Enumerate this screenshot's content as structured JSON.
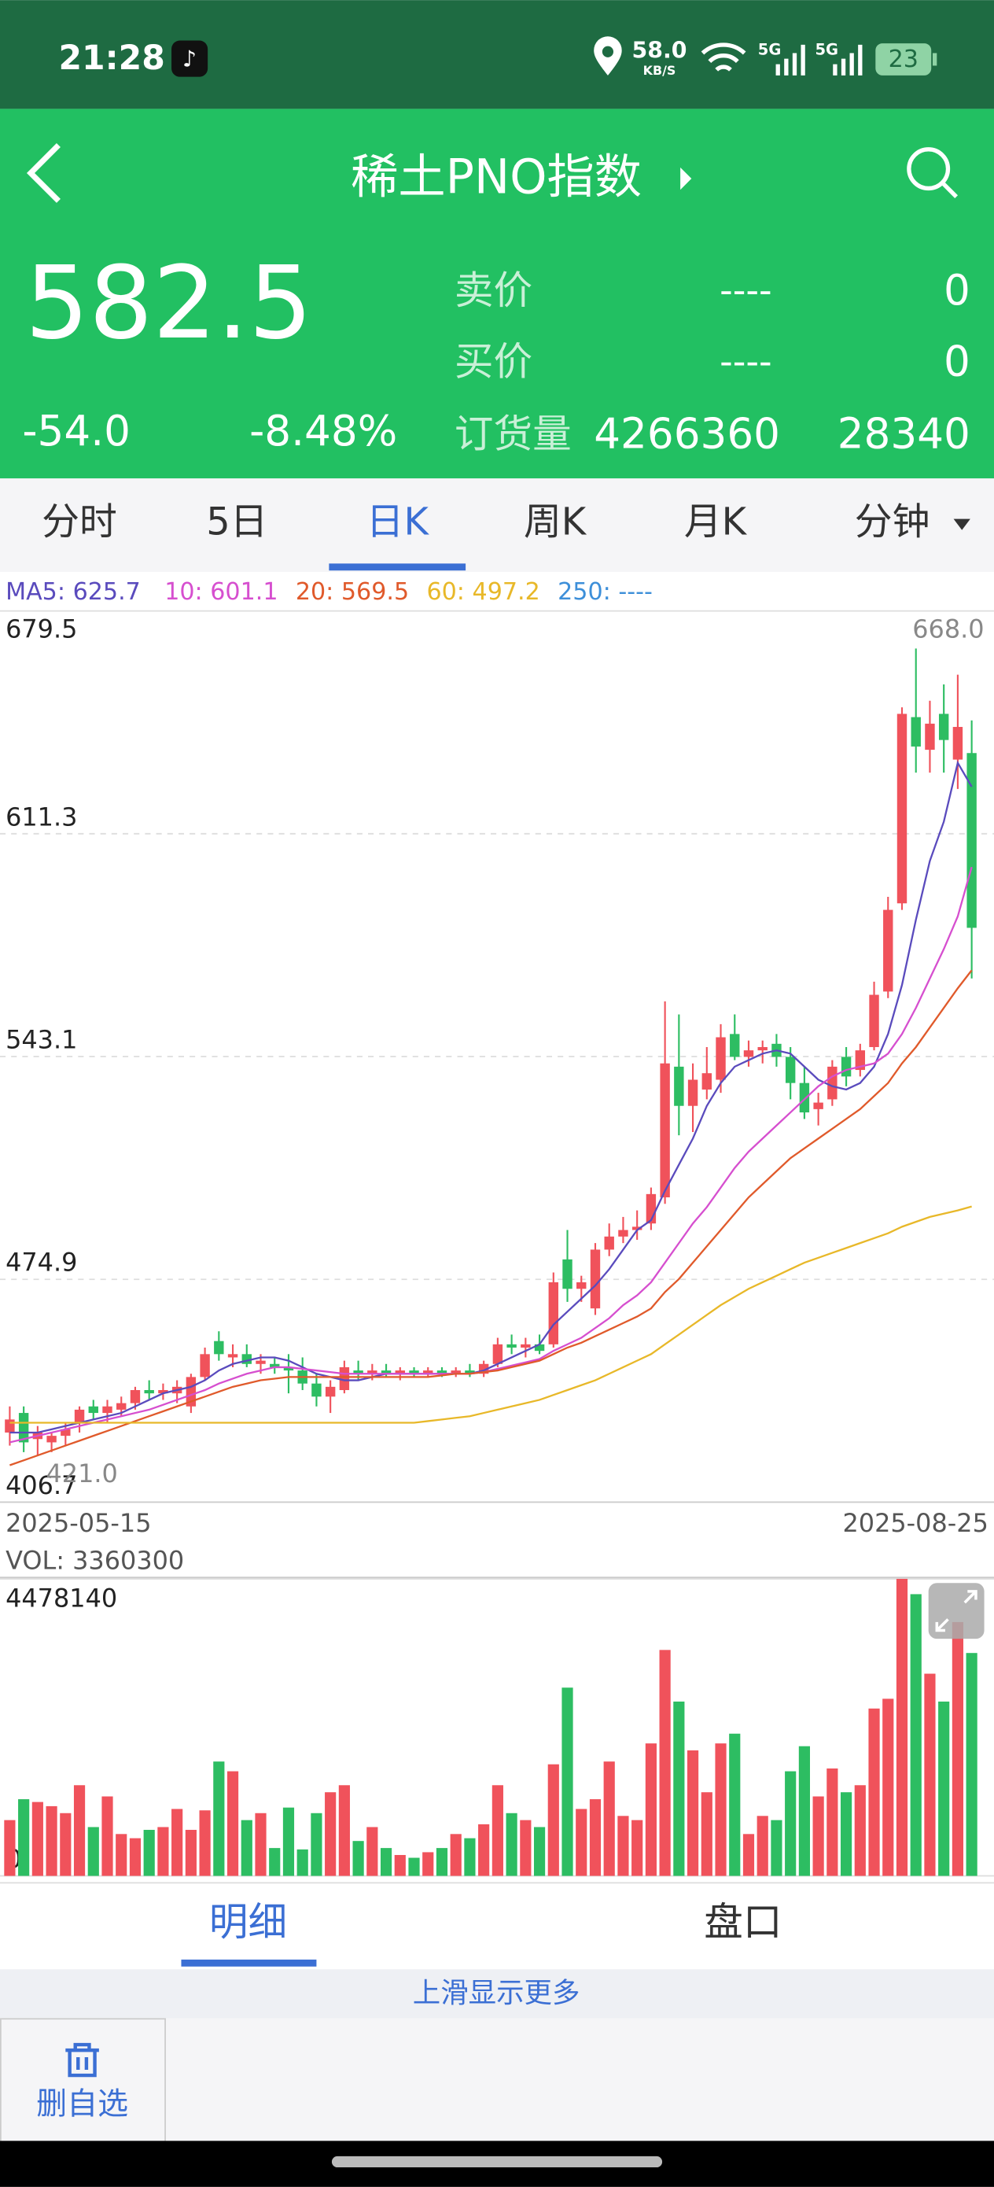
{
  "status_bar": {
    "time": "21:28",
    "net_speed": "58.0",
    "net_unit": "KB/S",
    "signal_1": "5G",
    "signal_2": "5G",
    "battery": "23"
  },
  "header": {
    "title": "稀土PNO指数"
  },
  "quote": {
    "price": "582.5",
    "change": "-54.0",
    "change_pct": "-8.48%",
    "ask_label": "卖价",
    "ask_price": "----",
    "ask_volume": "0",
    "bid_label": "买价",
    "bid_price": "----",
    "bid_volume": "0",
    "oi_label": "订货量",
    "oi_value": "4266360",
    "oi_change": "28340"
  },
  "tabs": {
    "items": [
      "分时",
      "5日",
      "日K",
      "周K",
      "月K",
      "分钟"
    ],
    "active": 2
  },
  "chart_data": [
    {
      "type": "candlestick",
      "up_color": "#f0525b",
      "down_color": "#2dbd62",
      "grid": true,
      "categories": [
        "2025-05-15",
        null,
        null,
        null,
        null,
        null,
        null,
        null,
        null,
        null,
        null,
        null,
        null,
        null,
        null,
        null,
        null,
        null,
        null,
        null,
        null,
        null,
        null,
        null,
        null,
        null,
        null,
        null,
        null,
        null,
        null,
        null,
        null,
        null,
        null,
        null,
        null,
        null,
        null,
        null,
        null,
        null,
        null,
        null,
        null,
        null,
        null,
        null,
        null,
        null,
        null,
        null,
        null,
        null,
        null,
        null,
        null,
        null,
        null,
        null,
        null,
        null,
        null,
        null,
        null,
        null,
        null,
        null,
        null,
        "2025-08-25"
      ],
      "open": [
        428,
        434,
        426,
        425,
        427,
        431,
        436,
        434,
        435,
        437,
        441,
        440,
        440,
        436,
        445,
        456,
        451,
        452,
        449,
        449,
        448,
        447,
        443,
        439,
        441,
        447,
        446,
        447,
        446,
        447,
        446,
        447,
        446,
        447,
        446,
        449,
        455,
        454,
        455,
        455,
        481,
        472,
        466,
        484,
        488,
        490,
        492,
        500,
        540,
        528,
        533,
        536,
        550,
        543,
        545,
        547,
        543,
        535,
        527,
        530,
        543,
        539,
        546,
        563,
        590,
        647,
        637,
        648,
        634,
        636
      ],
      "high": [
        436,
        436,
        430,
        428,
        431,
        436,
        438,
        438,
        439,
        442,
        444,
        443,
        444,
        446,
        454,
        459,
        455,
        455,
        452,
        451,
        452,
        451,
        446,
        444,
        450,
        450,
        449,
        449,
        448,
        448,
        448,
        448,
        448,
        449,
        450,
        457,
        458,
        457,
        458,
        477,
        490,
        476,
        486,
        492,
        494,
        496,
        503,
        560,
        556,
        541,
        546,
        553,
        556,
        548,
        548,
        550,
        546,
        540,
        532,
        542,
        546,
        547,
        566,
        592,
        650,
        668,
        652,
        657,
        660,
        646
      ],
      "low": [
        424,
        422,
        421,
        422,
        424,
        428,
        432,
        431,
        433,
        435,
        438,
        438,
        437,
        434,
        444,
        450,
        448,
        448,
        446,
        446,
        440,
        441,
        436,
        434,
        440,
        444,
        444,
        445,
        444,
        445,
        445,
        445,
        445,
        445,
        445,
        448,
        452,
        451,
        452,
        454,
        468,
        468,
        464,
        482,
        486,
        487,
        490,
        498,
        519,
        520,
        530,
        532,
        542,
        540,
        541,
        540,
        530,
        524,
        522,
        528,
        534,
        537,
        545,
        561,
        588,
        630,
        630,
        630,
        625,
        567
      ],
      "close": [
        432,
        425,
        428,
        427,
        429,
        435,
        434,
        436,
        437,
        441,
        440,
        441,
        442,
        445,
        452,
        452,
        452,
        449,
        450,
        448,
        447,
        443,
        439,
        442,
        448,
        446,
        447,
        446,
        447,
        446,
        447,
        446,
        447,
        446,
        449,
        455,
        454,
        455,
        453,
        474,
        472,
        474,
        484,
        488,
        490,
        491,
        501,
        541,
        528,
        536,
        538,
        549,
        543,
        545,
        546,
        543,
        535,
        526,
        529,
        540,
        537,
        545,
        562,
        588,
        648,
        638,
        645,
        640,
        644,
        582.5
      ],
      "series": [
        {
          "name": "MA5: 625.7",
          "color": "#5a4bbd",
          "values": [
            428,
            428,
            428,
            429,
            430,
            431,
            432,
            433,
            434,
            436,
            438,
            440,
            441,
            442,
            444,
            447,
            449,
            450,
            451,
            451,
            450,
            448,
            446,
            445,
            444,
            444,
            445,
            446,
            446,
            446,
            446,
            446,
            446,
            446,
            447,
            449,
            451,
            453,
            455,
            461,
            465,
            469,
            473,
            478,
            484,
            490,
            493,
            502,
            510,
            518,
            528,
            535,
            540,
            542,
            544,
            545,
            544,
            540,
            536,
            534,
            533,
            535,
            540,
            550,
            565,
            585,
            603,
            615,
            633,
            625.7
          ]
        },
        {
          "name": "10: 601.1",
          "color": "#d64fcf",
          "values": [
            425,
            426,
            427,
            428,
            429,
            430,
            431,
            432,
            433,
            434,
            435,
            436.5,
            438,
            439.5,
            441,
            443,
            444.5,
            446,
            447,
            448,
            448,
            447.5,
            447,
            446.5,
            446,
            446,
            446,
            446,
            446,
            446,
            446,
            446,
            446,
            446,
            446.5,
            447.5,
            448.5,
            449.5,
            450.5,
            453,
            455,
            457,
            460,
            463,
            467,
            470,
            474,
            480,
            486,
            492,
            497,
            503,
            509,
            514,
            518,
            522,
            526,
            530,
            534,
            537,
            539,
            540,
            541,
            544,
            550,
            558,
            567,
            576,
            586,
            601.1
          ]
        },
        {
          "name": "20: 569.5",
          "color": "#e05a2b",
          "values": [
            418,
            419.5,
            421,
            422.5,
            424,
            425.5,
            427,
            428.5,
            430,
            431.5,
            433,
            434.5,
            436,
            437.5,
            439,
            440.5,
            442,
            443,
            444,
            444.5,
            445,
            445,
            445,
            445,
            445,
            445,
            445,
            445,
            445,
            445,
            445,
            445.5,
            446,
            446,
            446.5,
            447,
            448,
            449,
            450,
            452,
            454,
            455.5,
            457.5,
            459.5,
            461.5,
            463.5,
            466,
            471,
            475,
            480,
            485,
            490,
            495,
            500,
            504,
            508,
            512,
            515,
            518,
            521,
            524,
            527,
            531,
            535,
            541,
            546,
            552,
            558,
            564,
            569.5
          ]
        },
        {
          "name": "60: 497.2",
          "color": "#e8b829",
          "values": [
            431,
            431,
            431,
            431,
            431,
            431,
            431,
            431,
            431,
            431,
            431,
            431,
            431,
            431,
            431,
            431,
            431,
            431,
            431,
            431,
            431,
            431,
            431,
            431,
            431,
            431,
            431,
            431,
            431,
            431,
            431.5,
            432,
            432.5,
            433,
            434,
            435,
            436,
            437,
            438,
            439.5,
            441,
            442.5,
            444,
            446,
            448,
            450,
            452,
            455,
            458,
            461,
            464,
            467,
            469.5,
            472,
            474,
            476,
            478,
            480,
            481.5,
            483,
            484.5,
            486,
            487.5,
            489,
            491,
            492.5,
            494,
            495,
            496,
            497.2
          ]
        },
        {
          "name": "250: ----",
          "color": "#3d8fd9",
          "values": [
            null,
            null,
            null,
            null,
            null,
            null,
            null,
            null,
            null,
            null,
            null,
            null,
            null,
            null,
            null,
            null,
            null,
            null,
            null,
            null,
            null,
            null,
            null,
            null,
            null,
            null,
            null,
            null,
            null,
            null,
            null,
            null,
            null,
            null,
            null,
            null,
            null,
            null,
            null,
            null,
            null,
            null,
            null,
            null,
            null,
            null,
            null,
            null,
            null,
            null,
            null,
            null,
            null,
            null,
            null,
            null,
            null,
            null,
            null,
            null,
            null,
            null,
            null,
            null,
            null,
            null,
            null,
            null,
            null,
            null
          ]
        }
      ],
      "ylim": [
        406.7,
        679.5
      ],
      "yticks": [
        406.7,
        474.9,
        543.1,
        611.3,
        679.5
      ],
      "annotations": [
        {
          "value": 668,
          "label": "668.0"
        },
        {
          "value": 421,
          "label": "421.0"
        }
      ]
    },
    {
      "type": "bar",
      "title": "VOL: 3360300",
      "values": [
        841000,
        1156000,
        1114000,
        1051000,
        946000,
        1367000,
        736000,
        1198000,
        631000,
        568000,
        694000,
        736000,
        1009000,
        694000,
        988000,
        1724000,
        1577000,
        841000,
        946000,
        420000,
        1030000,
        399000,
        946000,
        1261000,
        1367000,
        526000,
        736000,
        420000,
        315000,
        273000,
        357000,
        420000,
        631000,
        568000,
        778000,
        1367000,
        946000,
        841000,
        736000,
        1682000,
        2838000,
        1009000,
        1156000,
        1724000,
        904000,
        841000,
        1997000,
        3406000,
        2628000,
        1892000,
        1261000,
        1997000,
        2144000,
        631000,
        904000,
        841000,
        1577000,
        1955000,
        1198000,
        1619000,
        1261000,
        1367000,
        2523000,
        2670000,
        4478140,
        4247000,
        3048000,
        2628000,
        3826000,
        3360300
      ],
      "ylim": [
        0,
        4478140
      ],
      "yticks": [
        0,
        4478140
      ]
    }
  ],
  "detail_tabs": {
    "items": [
      "明细",
      "盘口"
    ],
    "active": 0
  },
  "hint": "上滑显示更多",
  "actions": {
    "remove_watchlist": "删自选"
  }
}
